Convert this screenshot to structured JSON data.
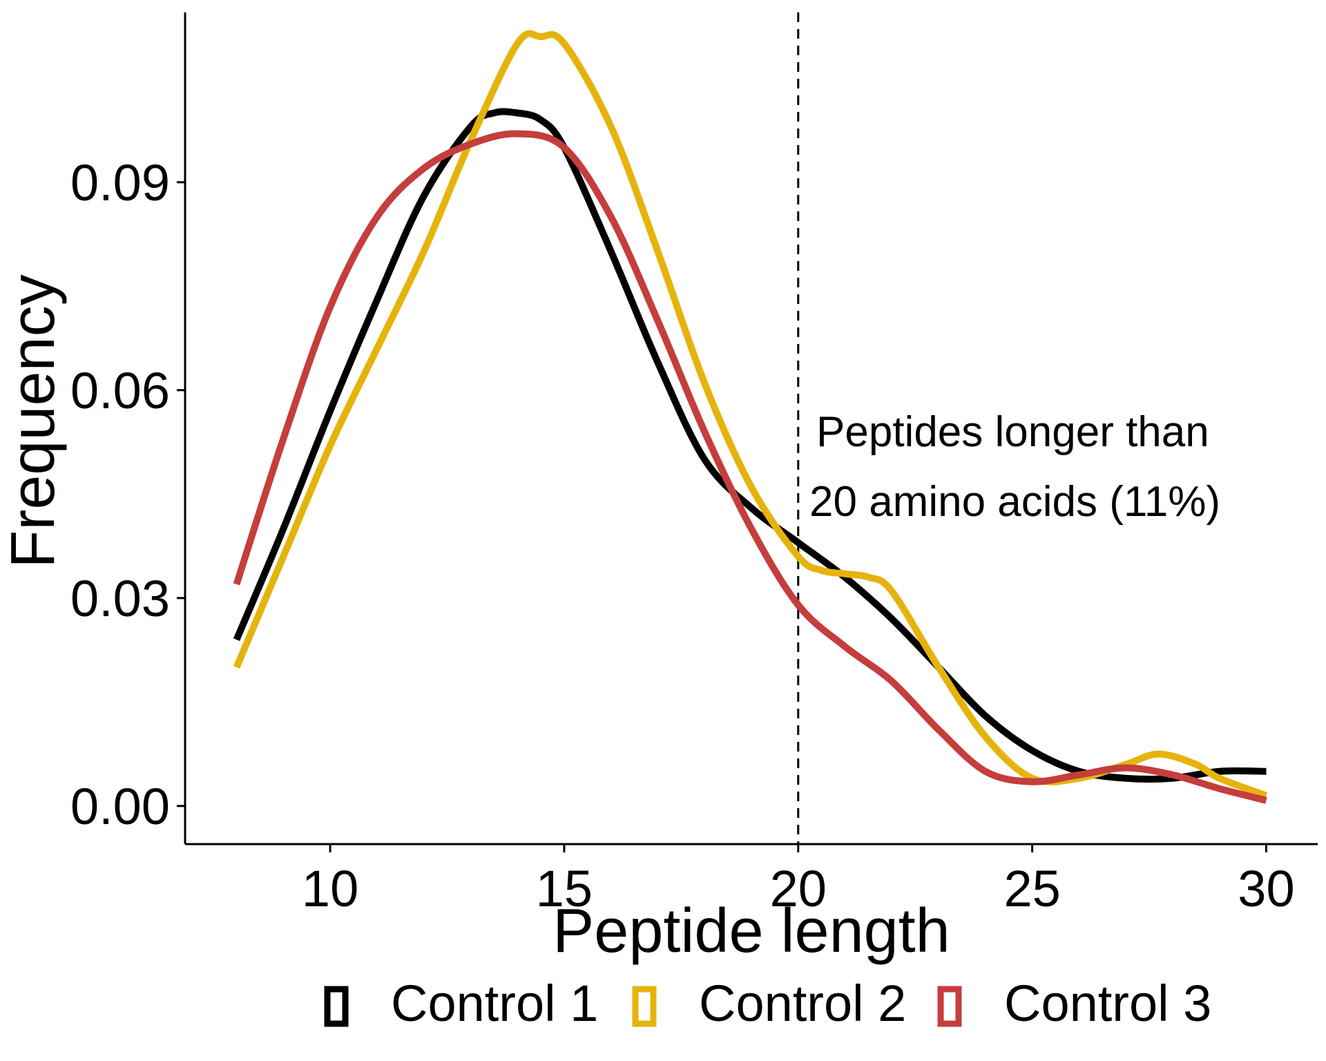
{
  "chart_data": {
    "type": "line",
    "title": "",
    "xlabel": "Peptide length",
    "ylabel": "Frequency",
    "xlim": [
      6.9,
      31.1
    ],
    "ylim": [
      -0.0055,
      0.1145
    ],
    "xticks": [
      10,
      15,
      20,
      25,
      30
    ],
    "xtick_labels": [
      "10",
      "15",
      "20",
      "25",
      "30"
    ],
    "yticks": [
      0,
      0.03,
      0.06,
      0.09
    ],
    "ytick_labels": [
      "0.00",
      "0.03",
      "0.06",
      "0.09"
    ],
    "grid": false,
    "legend_position": "bottom",
    "reference_line": {
      "x": 20,
      "style": "dashed"
    },
    "annotation": {
      "lines": [
        "Peptides longer than",
        "20 amino acids (11%)"
      ]
    },
    "series": [
      {
        "name": "Control 1",
        "color": "#000000",
        "x": [
          8,
          9,
          10,
          11,
          12,
          13,
          13.5,
          14,
          14.5,
          15,
          16,
          17,
          18,
          19,
          20,
          21,
          22,
          23,
          24,
          25,
          26,
          27,
          28,
          29,
          30
        ],
        "y": [
          0.024,
          0.04,
          0.057,
          0.073,
          0.088,
          0.098,
          0.1,
          0.1,
          0.099,
          0.095,
          0.08,
          0.064,
          0.05,
          0.043,
          0.038,
          0.033,
          0.027,
          0.02,
          0.013,
          0.008,
          0.005,
          0.004,
          0.004,
          0.005,
          0.005
        ]
      },
      {
        "name": "Control 2",
        "color": "#E6B30C",
        "x": [
          8,
          9,
          10,
          11,
          12,
          13,
          14,
          14.5,
          15,
          16,
          17,
          18,
          19,
          20,
          20.5,
          21,
          21.5,
          22,
          23,
          24,
          25,
          26,
          27,
          27.7,
          28.5,
          29,
          30
        ],
        "y": [
          0.02,
          0.036,
          0.052,
          0.066,
          0.08,
          0.096,
          0.11,
          0.111,
          0.11,
          0.098,
          0.08,
          0.061,
          0.046,
          0.036,
          0.034,
          0.0335,
          0.033,
          0.031,
          0.02,
          0.01,
          0.004,
          0.004,
          0.006,
          0.0075,
          0.006,
          0.004,
          0.0015
        ]
      },
      {
        "name": "Control 3",
        "color": "#C43E3C",
        "x": [
          8,
          9,
          10,
          11,
          12,
          13,
          14,
          15,
          16,
          17,
          18,
          19,
          20,
          21,
          22,
          23,
          24,
          25,
          26,
          27,
          28,
          29,
          30
        ],
        "y": [
          0.032,
          0.053,
          0.072,
          0.085,
          0.092,
          0.0955,
          0.097,
          0.095,
          0.085,
          0.07,
          0.054,
          0.04,
          0.029,
          0.023,
          0.018,
          0.011,
          0.005,
          0.0035,
          0.0045,
          0.0055,
          0.0045,
          0.0025,
          0.0008
        ]
      }
    ]
  }
}
